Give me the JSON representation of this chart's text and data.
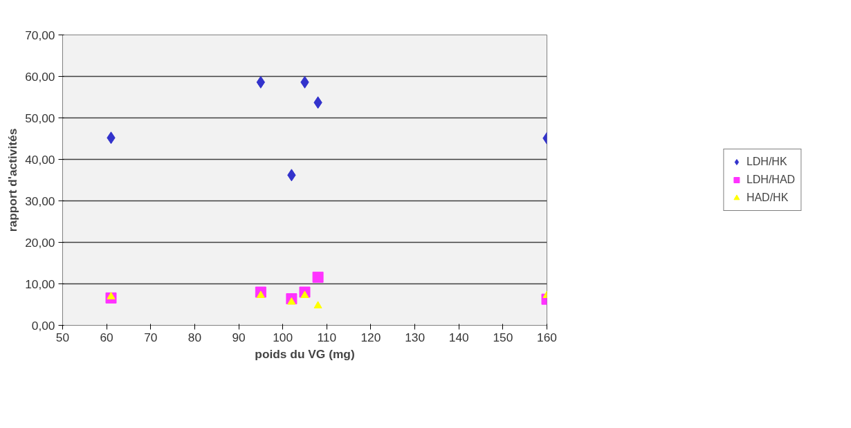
{
  "chart_data": {
    "type": "scatter",
    "xlabel": "poids du VG (mg)",
    "ylabel": "rapport d'activités",
    "x": [
      61,
      95,
      102,
      105,
      108,
      160
    ],
    "xlim": [
      50,
      160
    ],
    "xticks": [
      50,
      60,
      70,
      80,
      90,
      100,
      110,
      120,
      130,
      140,
      150,
      160
    ],
    "ylim": [
      0,
      70
    ],
    "yticks": [
      {
        "value": 0,
        "label": "0,00"
      },
      {
        "value": 10,
        "label": "10,00"
      },
      {
        "value": 20,
        "label": "20,00"
      },
      {
        "value": 30,
        "label": "30,00"
      },
      {
        "value": 40,
        "label": "40,00"
      },
      {
        "value": 50,
        "label": "50,00"
      },
      {
        "value": 60,
        "label": "60,00"
      },
      {
        "value": 70,
        "label": "70,00"
      }
    ],
    "grid": "y",
    "legend": "right",
    "series": [
      {
        "name": "LDH/HK",
        "color": "#3333cc",
        "marker": "diamond",
        "values": [
          45.2,
          58.6,
          36.2,
          58.6,
          53.7,
          45.1
        ]
      },
      {
        "name": "LDH/HAD",
        "color": "#ff33ff",
        "marker": "square",
        "values": [
          6.6,
          8.0,
          6.4,
          8.0,
          11.6,
          6.3
        ]
      },
      {
        "name": "HAD/HK",
        "color": "#ffff00",
        "marker": "triangle",
        "values": [
          6.9,
          7.2,
          5.6,
          7.2,
          4.7,
          7.2
        ]
      }
    ]
  }
}
